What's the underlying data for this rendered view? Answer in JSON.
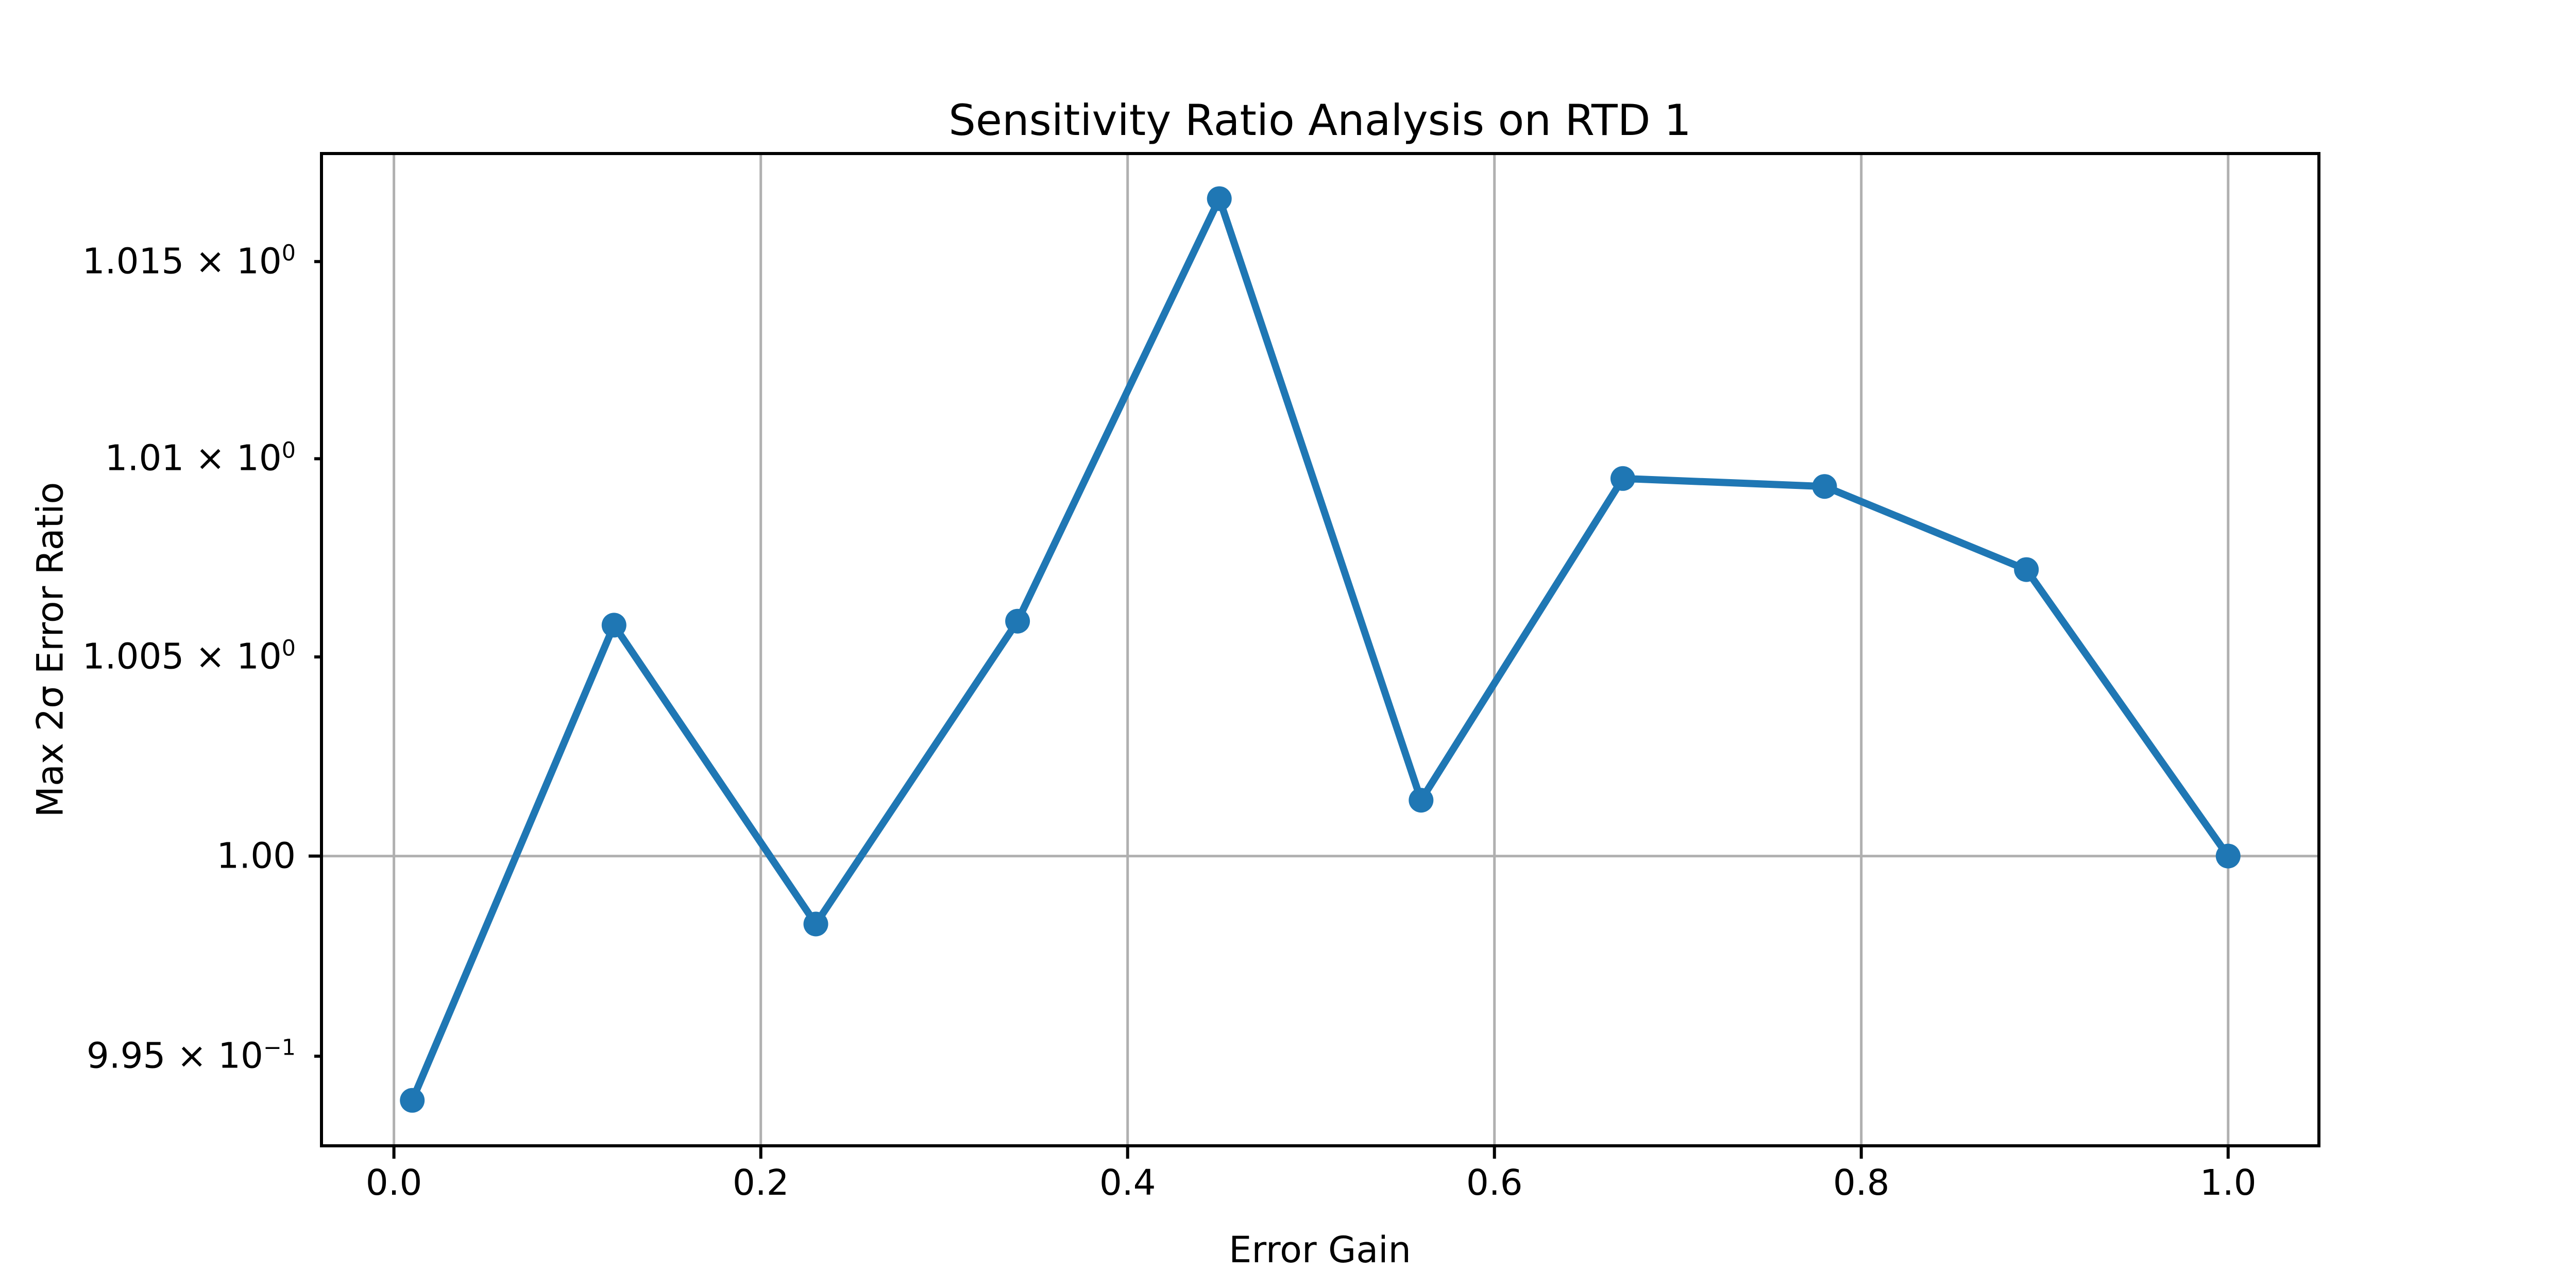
{
  "chart_data": {
    "type": "line",
    "title": "Sensitivity Ratio Analysis on RTD 1",
    "xlabel": "Error Gain",
    "ylabel": "Max 2σ Error Ratio",
    "x": [
      0.01,
      0.12,
      0.23,
      0.34,
      0.45,
      0.56,
      0.67,
      0.78,
      0.89,
      1.0
    ],
    "y": [
      0.9939,
      1.0058,
      0.9983,
      1.0059,
      1.0166,
      1.0014,
      1.0095,
      1.0093,
      1.0072,
      1.0
    ],
    "series": [
      {
        "name": "Max 2σ Error Ratio",
        "color": "#1f77b4",
        "marker": "circle",
        "style": "solid"
      }
    ],
    "yscale": "log",
    "xscale": "linear",
    "xlim": [
      -0.0395,
      1.0495
    ],
    "ylim": [
      0.99277,
      1.01775
    ],
    "x_ticks": [
      {
        "value": 0.0,
        "label": "0.0"
      },
      {
        "value": 0.2,
        "label": "0.2"
      },
      {
        "value": 0.4,
        "label": "0.4"
      },
      {
        "value": 0.6,
        "label": "0.6"
      },
      {
        "value": 0.8,
        "label": "0.8"
      },
      {
        "value": 1.0,
        "label": "1.0"
      }
    ],
    "y_ticks": [
      {
        "value": 1.015,
        "mantissa": "1.015 × 10",
        "exponent": "0",
        "major": false
      },
      {
        "value": 1.01,
        "mantissa": "1.01 × 10",
        "exponent": "0",
        "major": false
      },
      {
        "value": 1.005,
        "mantissa": "1.005 × 10",
        "exponent": "0",
        "major": false
      },
      {
        "value": 1.0,
        "mantissa": "1.00",
        "exponent": "",
        "major": true
      },
      {
        "value": 0.995,
        "mantissa": "9.95 × 10",
        "exponent": "−1",
        "major": false
      }
    ],
    "grid": {
      "color": "#b0b0b0",
      "vertical_values": [
        0.0,
        0.2,
        0.4,
        0.6,
        0.8,
        1.0
      ],
      "horizontal_values": [
        1.0
      ]
    },
    "legend": null,
    "colors": {
      "line": "#1f77b4",
      "grid": "#b0b0b0",
      "spine": "#000000",
      "text": "#000000",
      "background": "#ffffff"
    }
  }
}
